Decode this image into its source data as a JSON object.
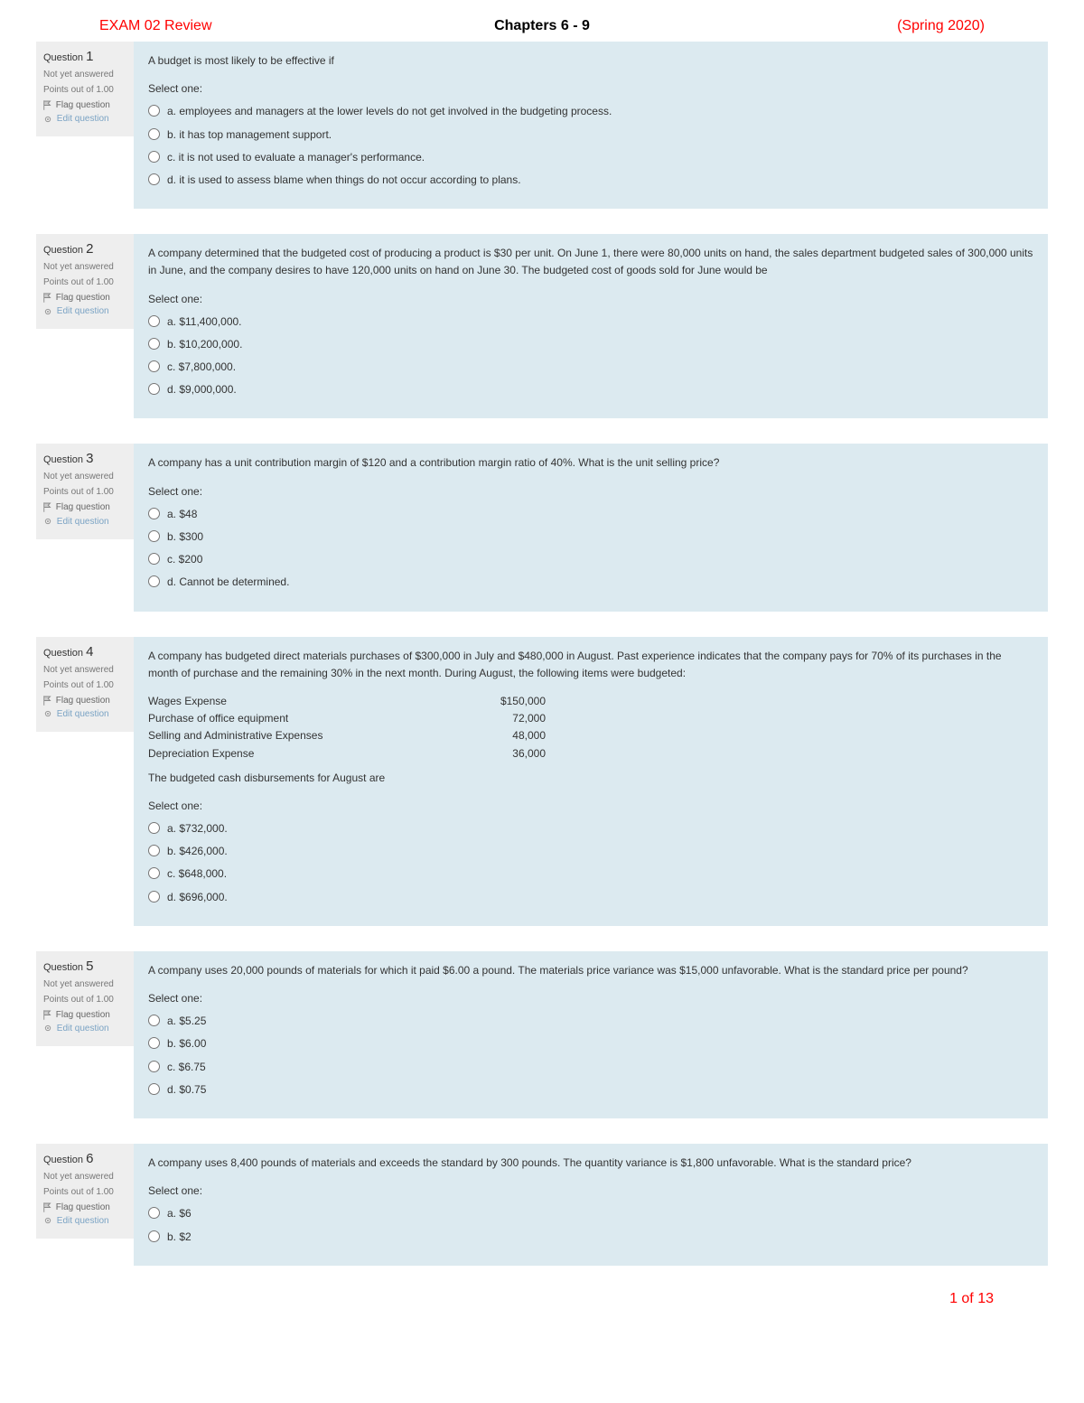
{
  "header": {
    "left": "EXAM 02 Review",
    "center": "Chapters 6 - 9",
    "right": "(Spring 2020)"
  },
  "sidebar_common": {
    "not_answered": "Not yet answered",
    "points": "Points out of 1.00",
    "flag": "Flag question",
    "edit": "Edit question"
  },
  "select_one": "Select one:",
  "questions": [
    {
      "number": "1",
      "prompt": "A budget is most likely to be effective if",
      "choices": [
        "a. employees and managers at the lower levels do not get involved in the budgeting process.",
        "b. it has top management support.",
        "c. it is not used to evaluate a manager's performance.",
        "d. it is used to assess blame when things do not occur according to plans."
      ]
    },
    {
      "number": "2",
      "prompt": "A company determined that the budgeted cost of producing a product is $30 per unit. On June 1, there were 80,000 units on hand, the sales department budgeted sales of 300,000 units in June, and the company desires to have 120,000 units on hand on June 30. The budgeted cost of goods sold for June would be",
      "choices": [
        "a. $11,400,000.",
        "b. $10,200,000.",
        "c. $7,800,000.",
        "d. $9,000,000."
      ]
    },
    {
      "number": "3",
      "prompt": "A company has a unit contribution margin of $120 and a contribution margin ratio of 40%. What is the unit selling price?",
      "choices": [
        "a. $48",
        "b. $300",
        "c. $200",
        "d. Cannot be determined."
      ]
    },
    {
      "number": "4",
      "prompt_top": "A company has budgeted direct materials purchases of $300,000 in July and $480,000 in August. Past experience indicates that the company pays for 70% of its purchases in the month of purchase and the remaining 30% in the next month. During August, the following items were budgeted:",
      "budget_rows": [
        {
          "label": "Wages Expense",
          "value": "$150,000"
        },
        {
          "label": "Purchase of office equipment",
          "value": "72,000"
        },
        {
          "label": "Selling and Administrative Expenses",
          "value": "48,000"
        },
        {
          "label": "Depreciation Expense",
          "value": "36,000"
        }
      ],
      "prompt_bottom": "The budgeted cash disbursements for August are",
      "choices": [
        "a. $732,000.",
        "b. $426,000.",
        "c. $648,000.",
        "d. $696,000."
      ]
    },
    {
      "number": "5",
      "prompt": "A company uses 20,000 pounds of materials for which it paid $6.00 a pound. The materials price variance was $15,000 unfavorable. What is the standard price per pound?",
      "choices": [
        "a. $5.25",
        "b. $6.00",
        "c. $6.75",
        "d. $0.75"
      ]
    },
    {
      "number": "6",
      "prompt": "A company uses 8,400 pounds of materials and exceeds the standard by 300 pounds. The quantity variance is $1,800 unfavorable. What is the standard price?",
      "choices": [
        "a. $6",
        "b. $2"
      ]
    }
  ],
  "page_num": "1 of 13"
}
